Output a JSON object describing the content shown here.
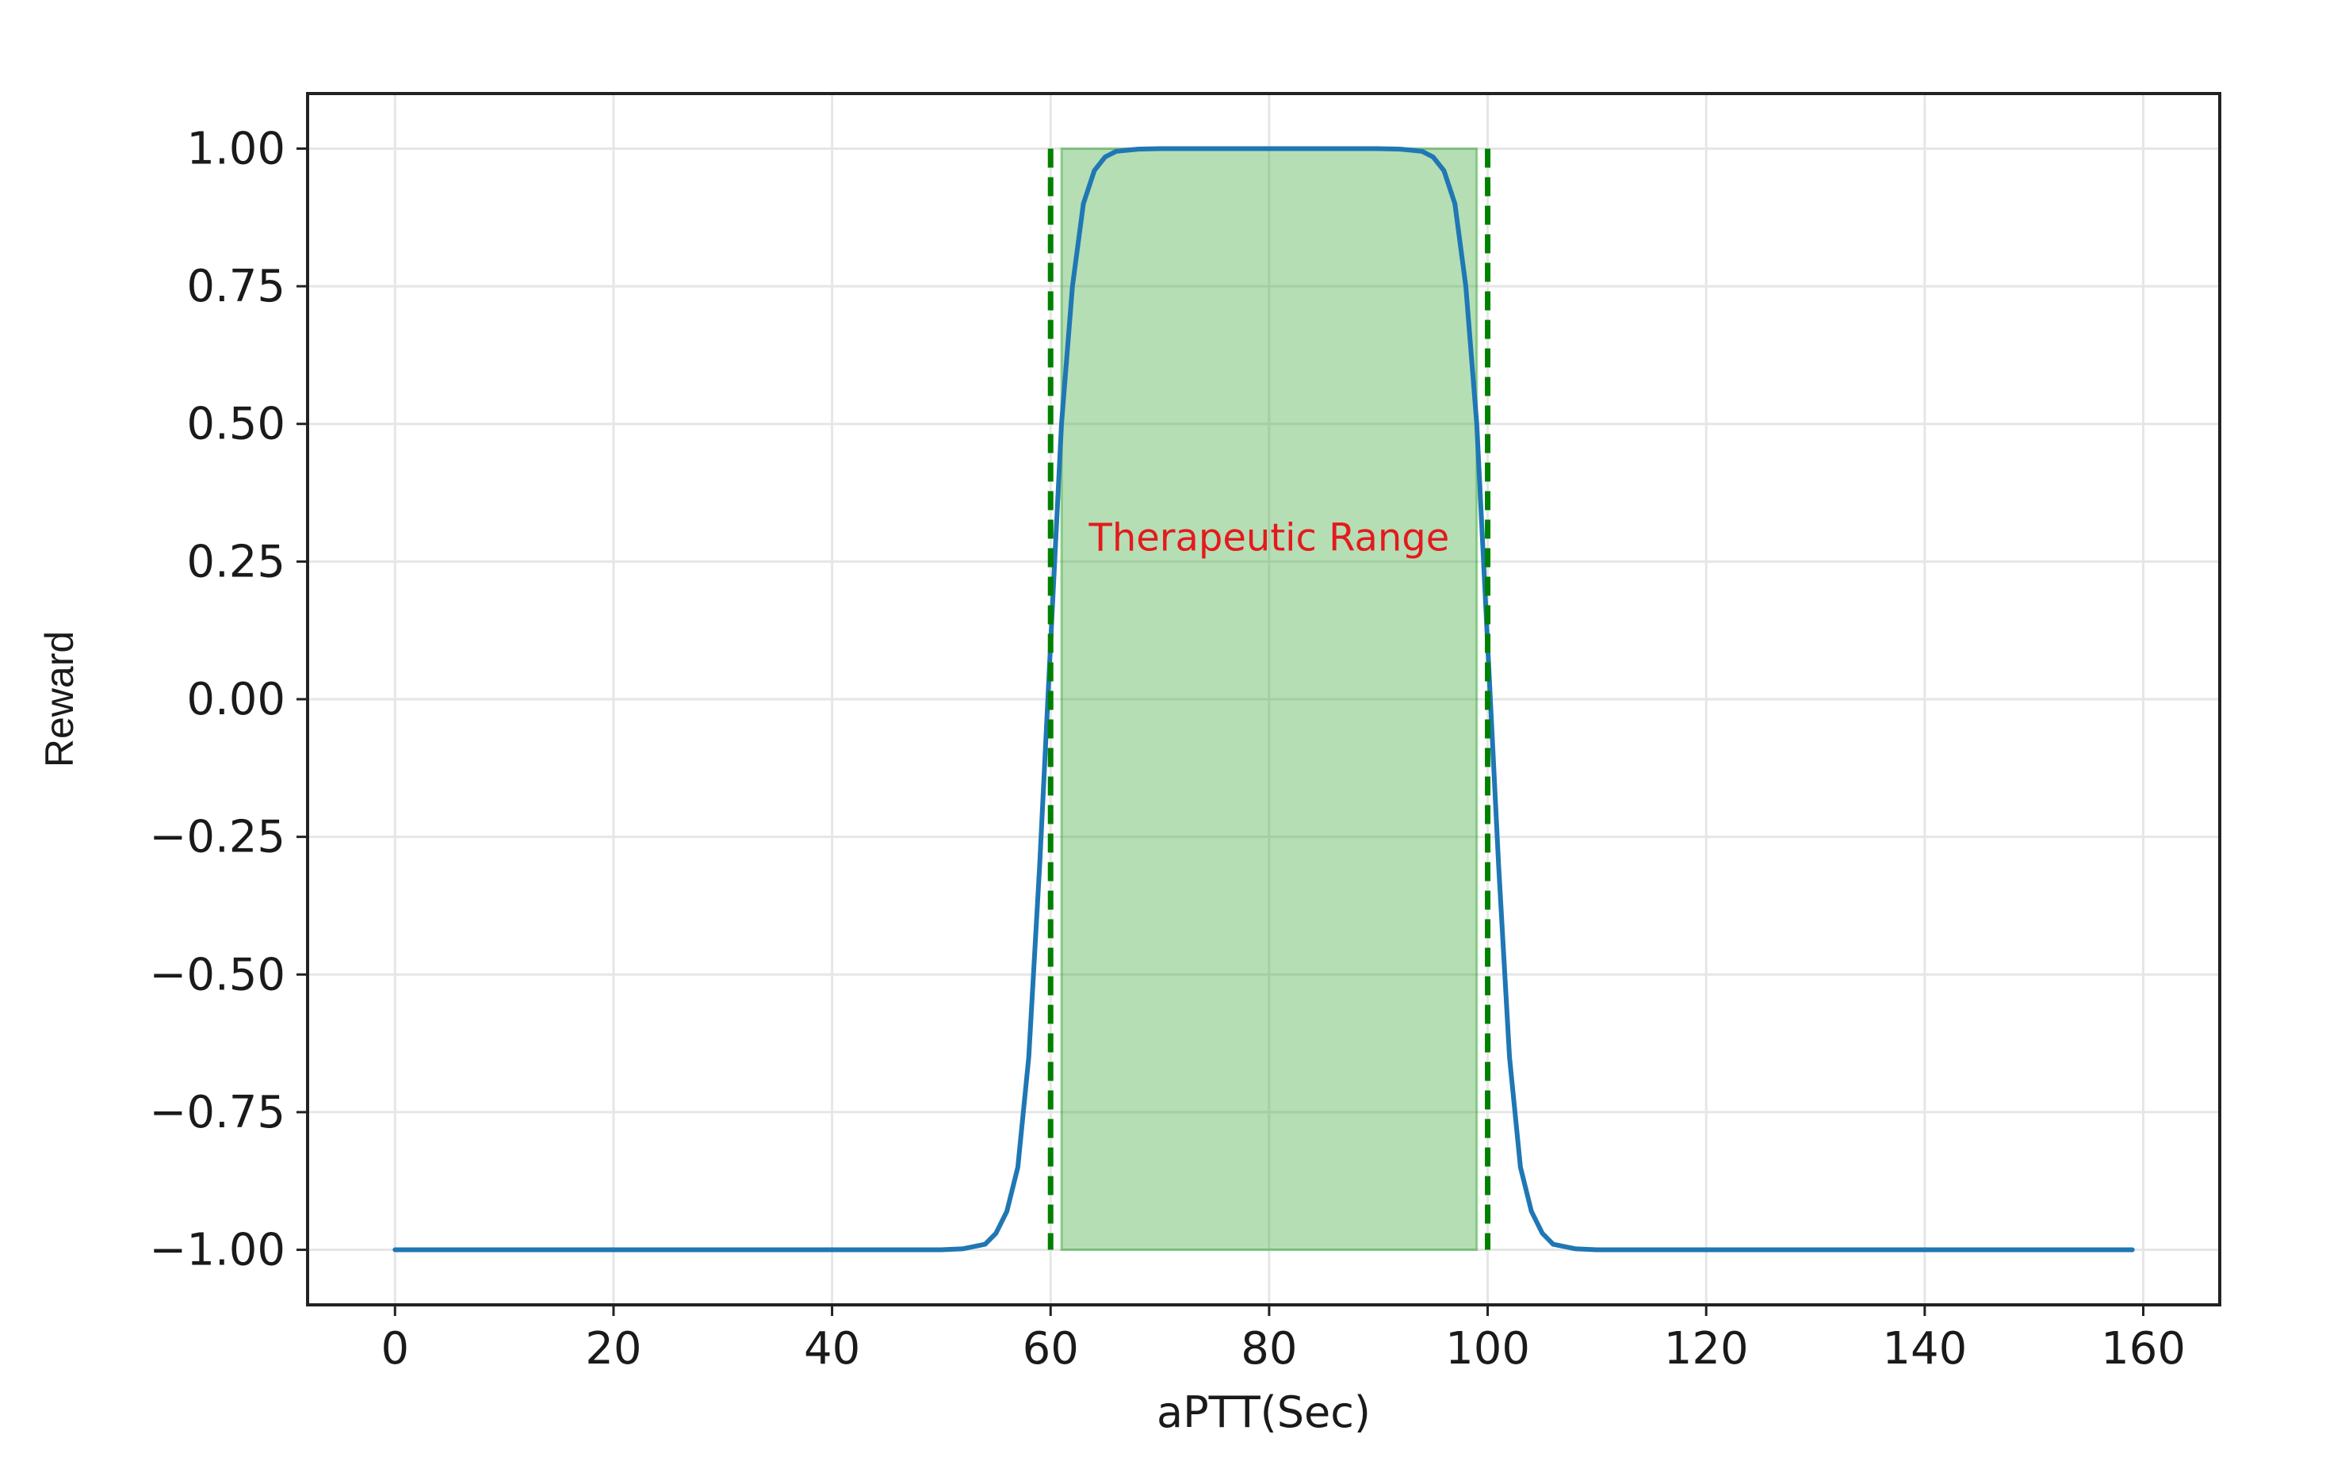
{
  "chart_data": {
    "type": "line",
    "xlabel": "aPTT(Sec)",
    "ylabel": "Reward",
    "xlim": [
      -8,
      167
    ],
    "ylim": [
      -1.1,
      1.1
    ],
    "xticks": [
      0,
      20,
      40,
      60,
      80,
      100,
      120,
      140,
      160
    ],
    "xtick_labels": [
      "0",
      "20",
      "40",
      "60",
      "80",
      "100",
      "120",
      "140",
      "160"
    ],
    "yticks": [
      1.0,
      0.75,
      0.5,
      0.25,
      0.0,
      -0.25,
      -0.5,
      -0.75,
      -1.0
    ],
    "ytick_labels": [
      "1.00",
      "0.75",
      "0.50",
      "0.25",
      "0.00",
      "−0.25",
      "−0.50",
      "−0.75",
      "−1.00"
    ],
    "grid": true,
    "series": [
      {
        "color": "#1f77b4",
        "x": [
          0,
          10,
          20,
          30,
          40,
          50,
          52,
          54,
          55,
          56,
          57,
          58,
          59,
          60,
          61,
          62,
          63,
          64,
          65,
          66,
          68,
          70,
          75,
          80,
          85,
          90,
          92,
          94,
          95,
          96,
          97,
          98,
          99,
          100,
          101,
          102,
          103,
          104,
          105,
          106,
          108,
          110,
          120,
          130,
          140,
          150,
          159
        ],
        "y": [
          -1.0,
          -1.0,
          -1.0,
          -1.0,
          -1.0,
          -1.0,
          -0.998,
          -0.99,
          -0.97,
          -0.93,
          -0.85,
          -0.65,
          -0.3,
          0.1,
          0.5,
          0.75,
          0.9,
          0.96,
          0.985,
          0.995,
          0.999,
          1.0,
          1.0,
          1.0,
          1.0,
          1.0,
          0.999,
          0.995,
          0.985,
          0.96,
          0.9,
          0.75,
          0.5,
          0.1,
          -0.3,
          -0.65,
          -0.85,
          -0.93,
          -0.97,
          -0.99,
          -0.998,
          -1.0,
          -1.0,
          -1.0,
          -1.0,
          -1.0,
          -1.0
        ]
      }
    ],
    "shaded_region": {
      "x": [
        61,
        99
      ],
      "y": [
        -1.0,
        1.0
      ],
      "color": "#2ca02c",
      "opacity": 0.35
    },
    "vlines": [
      {
        "x": 60,
        "color": "#008000",
        "style": "dashed"
      },
      {
        "x": 100,
        "color": "#008000",
        "style": "dashed"
      }
    ],
    "annotation": {
      "text": "Therapeutic Range",
      "x": 80,
      "y": 0.27,
      "color": "#e41a1c"
    }
  }
}
